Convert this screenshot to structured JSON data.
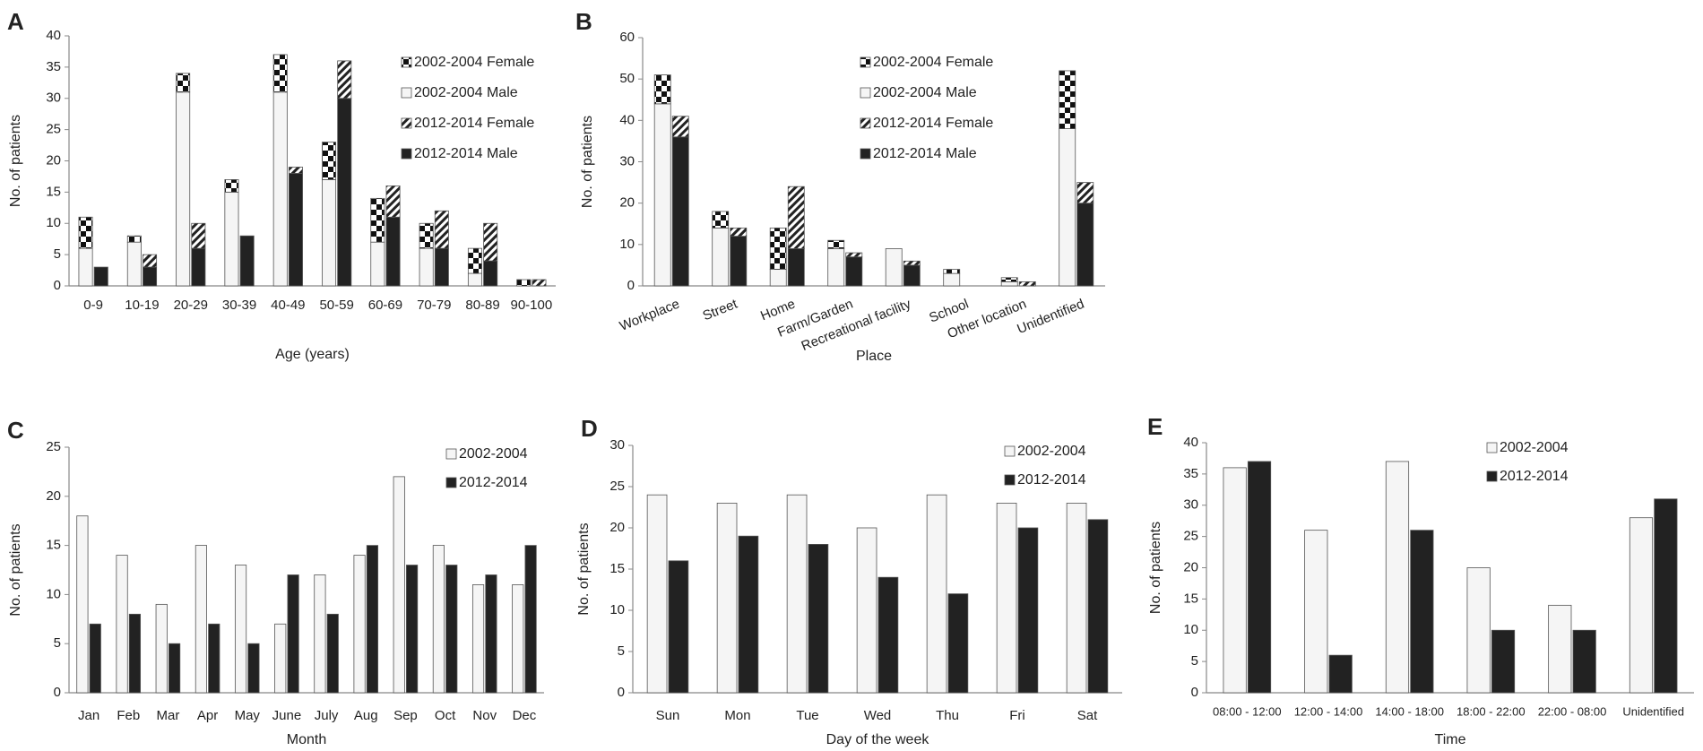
{
  "colors": {
    "male_2002": "#f5f5f5",
    "male_2012": "#222222",
    "outline": "#555555",
    "axis": "#888888"
  },
  "chart_data": [
    {
      "panel": "A",
      "type": "bar",
      "stacked": true,
      "xlabel": "Age (years)",
      "ylabel": "No. of patients",
      "ylim": [
        0,
        40
      ],
      "yticks": [
        0,
        5,
        10,
        15,
        20,
        25,
        30,
        35,
        40
      ],
      "categories": [
        "0-9",
        "10-19",
        "20-29",
        "30-39",
        "40-49",
        "50-59",
        "60-69",
        "70-79",
        "80-89",
        "90-100"
      ],
      "series": [
        {
          "name": "2002-2004 Male",
          "group": "2002-2004",
          "pattern": "white",
          "values": [
            6,
            7,
            31,
            15,
            31,
            17,
            7,
            6,
            2,
            0
          ]
        },
        {
          "name": "2002-2004 Female",
          "group": "2002-2004",
          "pattern": "check",
          "values": [
            5,
            1,
            3,
            2,
            6,
            6,
            7,
            4,
            4,
            1
          ]
        },
        {
          "name": "2012-2014 Male",
          "group": "2012-2014",
          "pattern": "black",
          "values": [
            3,
            3,
            6,
            8,
            18,
            30,
            11,
            6,
            4,
            0
          ]
        },
        {
          "name": "2012-2014 Female",
          "group": "2012-2014",
          "pattern": "hatch",
          "values": [
            0,
            2,
            4,
            0,
            1,
            6,
            5,
            6,
            6,
            1
          ]
        }
      ],
      "legend": [
        "2002-2004 Female",
        "2002-2004 Male",
        "2012-2014 Female",
        "2012-2014 Male"
      ],
      "legend_position": "top-right"
    },
    {
      "panel": "B",
      "type": "bar",
      "stacked": true,
      "xlabel": "Place",
      "ylabel": "No. of patients",
      "ylim": [
        0,
        60
      ],
      "yticks": [
        0,
        10,
        20,
        30,
        40,
        50,
        60
      ],
      "categories": [
        "Workplace",
        "Street",
        "Home",
        "Farm/Garden",
        "Recreational facility",
        "School",
        "Other location",
        "Unidentified"
      ],
      "series": [
        {
          "name": "2002-2004 Male",
          "group": "2002-2004",
          "pattern": "white",
          "values": [
            44,
            14,
            4,
            9,
            9,
            3,
            1,
            38
          ]
        },
        {
          "name": "2002-2004 Female",
          "group": "2002-2004",
          "pattern": "check",
          "values": [
            7,
            4,
            10,
            2,
            0,
            1,
            1,
            14
          ]
        },
        {
          "name": "2012-2014 Male",
          "group": "2012-2014",
          "pattern": "black",
          "values": [
            36,
            12,
            9,
            7,
            5,
            0,
            0,
            20
          ]
        },
        {
          "name": "2012-2014 Female",
          "group": "2012-2014",
          "pattern": "hatch",
          "values": [
            5,
            2,
            15,
            1,
            1,
            0,
            1,
            5
          ]
        }
      ],
      "legend": [
        "2002-2004 Female",
        "2002-2004 Male",
        "2012-2014 Female",
        "2012-2014 Male"
      ],
      "legend_position": "top-right"
    },
    {
      "panel": "C",
      "type": "bar",
      "stacked": false,
      "xlabel": "Month",
      "ylabel": "No. of patients",
      "ylim": [
        0,
        25
      ],
      "yticks": [
        0,
        5,
        10,
        15,
        20,
        25
      ],
      "categories": [
        "Jan",
        "Feb",
        "Mar",
        "Apr",
        "May",
        "June",
        "July",
        "Aug",
        "Sep",
        "Oct",
        "Nov",
        "Dec"
      ],
      "series": [
        {
          "name": "2002-2004",
          "pattern": "white",
          "values": [
            18,
            14,
            9,
            15,
            13,
            7,
            12,
            14,
            22,
            15,
            11,
            11
          ]
        },
        {
          "name": "2012-2014",
          "pattern": "black",
          "values": [
            7,
            8,
            5,
            7,
            5,
            12,
            8,
            15,
            13,
            13,
            12,
            15
          ]
        }
      ],
      "legend": [
        "2002-2004",
        "2012-2014"
      ],
      "legend_position": "top-right"
    },
    {
      "panel": "D",
      "type": "bar",
      "stacked": false,
      "xlabel": "Day of the week",
      "ylabel": "No. of patients",
      "ylim": [
        0,
        30
      ],
      "yticks": [
        0,
        5,
        10,
        15,
        20,
        25,
        30
      ],
      "categories": [
        "Sun",
        "Mon",
        "Tue",
        "Wed",
        "Thu",
        "Fri",
        "Sat"
      ],
      "series": [
        {
          "name": "2002-2004",
          "pattern": "white",
          "values": [
            24,
            23,
            24,
            20,
            24,
            23,
            23
          ]
        },
        {
          "name": "2012-2014",
          "pattern": "black",
          "values": [
            16,
            19,
            18,
            14,
            12,
            20,
            21
          ]
        }
      ],
      "legend": [
        "2002-2004",
        "2012-2014"
      ],
      "legend_position": "top-right"
    },
    {
      "panel": "E",
      "type": "bar",
      "stacked": false,
      "xlabel": "Time",
      "ylabel": "No. of patients",
      "ylim": [
        0,
        40
      ],
      "yticks": [
        0,
        5,
        10,
        15,
        20,
        25,
        30,
        35,
        40
      ],
      "categories": [
        "08:00 - 12:00",
        "12:00 - 14:00",
        "14:00 - 18:00",
        "18:00 - 22:00",
        "22:00 - 08:00",
        "Unidentified"
      ],
      "series": [
        {
          "name": "2002-2004",
          "pattern": "white",
          "values": [
            36,
            26,
            37,
            20,
            14,
            28
          ]
        },
        {
          "name": "2012-2014",
          "pattern": "black",
          "values": [
            37,
            6,
            26,
            10,
            10,
            31
          ]
        }
      ],
      "legend": [
        "2002-2004",
        "2012-2014"
      ],
      "legend_position": "top-right"
    }
  ]
}
